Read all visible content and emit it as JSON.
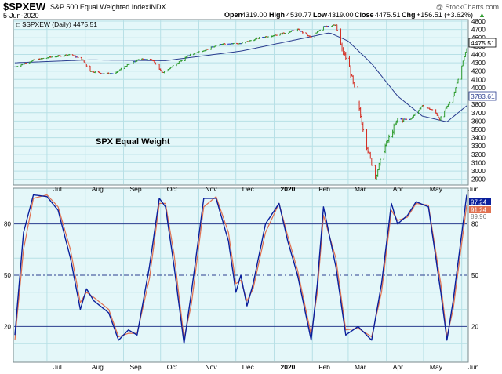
{
  "header": {
    "symbol": "$SPXEW",
    "name": "S&P 500 Equal Weighted Index",
    "exchange": "INDX",
    "date": "5-Jun-2020",
    "watermark": "@ StockCharts.com",
    "open_label": "Open",
    "open": "4319.00",
    "high_label": "High",
    "high": "4530.77",
    "low_label": "Low",
    "low": "4319.00",
    "close_label": "Close",
    "close": "4475.51",
    "chg_label": "Chg",
    "chg": "+156.51 (+3.62%)",
    "chg_arrow": "▲"
  },
  "price_panel": {
    "legend": "□ $SPXEW (Daily) 4475.51",
    "annotation": "SPX Equal Weight",
    "last_price_tag": "4475.51",
    "ma_tag": "3783.61"
  },
  "osc_panel": {
    "tag_fast": "97.24",
    "tag_slow": "91.24",
    "tag_third": "89.96"
  },
  "colors": {
    "panel_bg": "#e4f7f9",
    "grid": "#b7e0e6",
    "up": "#2e9b2e",
    "down": "#d42b20",
    "neutral": "#1f33c9",
    "ma_line": "#2a3d8f",
    "osc_fast": "#0a1f9c",
    "osc_slow": "#e07050",
    "level_line": "#2a3d8f"
  },
  "chart_data": [
    {
      "type": "ohlc",
      "title": "$SPXEW (Daily)",
      "series": [
        {
          "name": "$SPXEW (Daily)",
          "points": [
            [
              "2019-06-05",
              4250
            ],
            [
              "2019-06-20",
              4330
            ],
            [
              "2019-07-05",
              4370
            ],
            [
              "2019-07-20",
              4400
            ],
            [
              "2019-07-30",
              4330
            ],
            [
              "2019-08-05",
              4200
            ],
            [
              "2019-08-15",
              4170
            ],
            [
              "2019-08-25",
              4170
            ],
            [
              "2019-09-01",
              4250
            ],
            [
              "2019-09-15",
              4350
            ],
            [
              "2019-09-25",
              4330
            ],
            [
              "2019-10-02",
              4180
            ],
            [
              "2019-10-10",
              4250
            ],
            [
              "2019-10-25",
              4400
            ],
            [
              "2019-11-05",
              4450
            ],
            [
              "2019-11-20",
              4530
            ],
            [
              "2019-12-05",
              4530
            ],
            [
              "2019-12-20",
              4600
            ],
            [
              "2020-01-05",
              4640
            ],
            [
              "2020-01-20",
              4700
            ],
            [
              "2020-01-31",
              4600
            ],
            [
              "2020-02-10",
              4740
            ],
            [
              "2020-02-20",
              4750
            ],
            [
              "2020-02-25",
              4450
            ],
            [
              "2020-03-01",
              4300
            ],
            [
              "2020-03-09",
              3800
            ],
            [
              "2020-03-16",
              3300
            ],
            [
              "2020-03-23",
              2930
            ],
            [
              "2020-03-31",
              3300
            ],
            [
              "2020-04-10",
              3620
            ],
            [
              "2020-04-20",
              3620
            ],
            [
              "2020-04-30",
              3780
            ],
            [
              "2020-05-10",
              3720
            ],
            [
              "2020-05-14",
              3620
            ],
            [
              "2020-05-25",
              3900
            ],
            [
              "2020-06-05",
              4475
            ]
          ]
        },
        {
          "name": "MA",
          "points": [
            [
              "2019-06-05",
              4300
            ],
            [
              "2019-08-05",
              4335
            ],
            [
              "2019-10-05",
              4325
            ],
            [
              "2019-12-05",
              4440
            ],
            [
              "2020-01-20",
              4580
            ],
            [
              "2020-02-15",
              4660
            ],
            [
              "2020-03-01",
              4560
            ],
            [
              "2020-03-20",
              4290
            ],
            [
              "2020-04-10",
              3900
            ],
            [
              "2020-04-30",
              3660
            ],
            [
              "2020-05-20",
              3590
            ],
            [
              "2020-06-05",
              3784
            ]
          ]
        }
      ],
      "ylim": [
        2850,
        4800
      ],
      "yticks": [
        2900,
        3000,
        3100,
        3200,
        3300,
        3400,
        3500,
        3600,
        3700,
        3800,
        3900,
        4000,
        4100,
        4200,
        4300,
        4400,
        4500,
        4600,
        4700,
        4800
      ],
      "xticks": [
        "Jul",
        "Aug",
        "Sep",
        "Oct",
        "Nov",
        "Dec",
        "2020",
        "Feb",
        "Mar",
        "Apr",
        "May",
        "Jun"
      ],
      "grid": true,
      "legend": "top-left"
    },
    {
      "type": "line",
      "title": "",
      "series": [
        {
          "name": "fast",
          "points": [
            [
              "2019-06-05",
              15
            ],
            [
              "2019-06-12",
              75
            ],
            [
              "2019-06-20",
              97
            ],
            [
              "2019-07-01",
              96
            ],
            [
              "2019-07-10",
              88
            ],
            [
              "2019-07-20",
              60
            ],
            [
              "2019-07-28",
              30
            ],
            [
              "2019-08-02",
              42
            ],
            [
              "2019-08-08",
              35
            ],
            [
              "2019-08-20",
              28
            ],
            [
              "2019-08-28",
              12
            ],
            [
              "2019-09-05",
              18
            ],
            [
              "2019-09-12",
              15
            ],
            [
              "2019-09-22",
              55
            ],
            [
              "2019-09-30",
              95
            ],
            [
              "2019-10-05",
              90
            ],
            [
              "2019-10-12",
              55
            ],
            [
              "2019-10-20",
              10
            ],
            [
              "2019-10-26",
              40
            ],
            [
              "2019-11-05",
              95
            ],
            [
              "2019-11-15",
              95
            ],
            [
              "2019-11-25",
              70
            ],
            [
              "2019-12-01",
              40
            ],
            [
              "2019-12-05",
              50
            ],
            [
              "2019-12-10",
              32
            ],
            [
              "2019-12-15",
              45
            ],
            [
              "2019-12-25",
              80
            ],
            [
              "2020-01-05",
              92
            ],
            [
              "2020-01-12",
              70
            ],
            [
              "2020-01-20",
              50
            ],
            [
              "2020-01-31",
              12
            ],
            [
              "2020-02-05",
              45
            ],
            [
              "2020-02-10",
              90
            ],
            [
              "2020-02-20",
              55
            ],
            [
              "2020-02-28",
              15
            ],
            [
              "2020-03-09",
              20
            ],
            [
              "2020-03-20",
              12
            ],
            [
              "2020-03-28",
              45
            ],
            [
              "2020-04-05",
              92
            ],
            [
              "2020-04-10",
              80
            ],
            [
              "2020-04-18",
              85
            ],
            [
              "2020-04-25",
              93
            ],
            [
              "2020-05-05",
              90
            ],
            [
              "2020-05-15",
              40
            ],
            [
              "2020-05-20",
              12
            ],
            [
              "2020-05-25",
              35
            ],
            [
              "2020-06-05",
              97
            ]
          ]
        },
        {
          "name": "slow",
          "points": [
            [
              "2019-06-05",
              12
            ],
            [
              "2019-06-12",
              65
            ],
            [
              "2019-06-20",
              95
            ],
            [
              "2019-07-01",
              97
            ],
            [
              "2019-07-10",
              90
            ],
            [
              "2019-07-20",
              65
            ],
            [
              "2019-07-28",
              34
            ],
            [
              "2019-08-02",
              40
            ],
            [
              "2019-08-08",
              37
            ],
            [
              "2019-08-20",
              30
            ],
            [
              "2019-08-28",
              14
            ],
            [
              "2019-09-05",
              16
            ],
            [
              "2019-09-12",
              16
            ],
            [
              "2019-09-22",
              48
            ],
            [
              "2019-09-30",
              92
            ],
            [
              "2019-10-05",
              92
            ],
            [
              "2019-10-12",
              62
            ],
            [
              "2019-10-20",
              13
            ],
            [
              "2019-10-26",
              33
            ],
            [
              "2019-11-05",
              90
            ],
            [
              "2019-11-15",
              96
            ],
            [
              "2019-11-25",
              75
            ],
            [
              "2019-12-01",
              45
            ],
            [
              "2019-12-05",
              47
            ],
            [
              "2019-12-10",
              35
            ],
            [
              "2019-12-15",
              42
            ],
            [
              "2019-12-25",
              75
            ],
            [
              "2020-01-05",
              92
            ],
            [
              "2020-01-12",
              73
            ],
            [
              "2020-01-20",
              53
            ],
            [
              "2020-01-31",
              15
            ],
            [
              "2020-02-05",
              40
            ],
            [
              "2020-02-10",
              85
            ],
            [
              "2020-02-20",
              60
            ],
            [
              "2020-02-28",
              18
            ],
            [
              "2020-03-09",
              19
            ],
            [
              "2020-03-20",
              14
            ],
            [
              "2020-03-28",
              40
            ],
            [
              "2020-04-05",
              88
            ],
            [
              "2020-04-10",
              82
            ],
            [
              "2020-04-18",
              84
            ],
            [
              "2020-04-25",
              92
            ],
            [
              "2020-05-05",
              91
            ],
            [
              "2020-05-15",
              45
            ],
            [
              "2020-05-20",
              14
            ],
            [
              "2020-05-25",
              30
            ],
            [
              "2020-06-05",
              91
            ]
          ]
        }
      ],
      "ylim": [
        0,
        100
      ],
      "levels": [
        20,
        50,
        80
      ],
      "yticks": [
        20,
        50,
        80
      ],
      "xticks": [
        "Jul",
        "Aug",
        "Sep",
        "Oct",
        "Nov",
        "Dec",
        "2020",
        "Feb",
        "Mar",
        "Apr",
        "May",
        "Jun"
      ],
      "grid": true
    }
  ]
}
